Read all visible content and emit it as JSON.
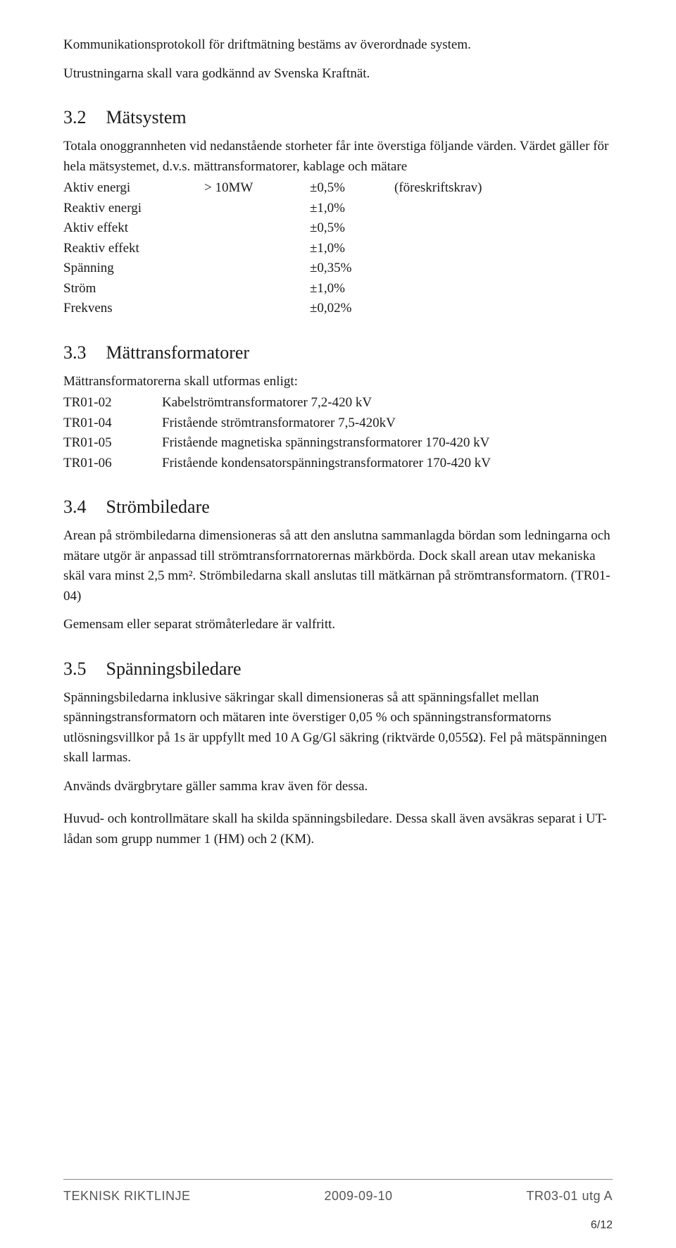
{
  "intro": {
    "p1": "Kommunikationsprotokoll för driftmätning bestäms av överordnade system.",
    "p2": "Utrustningarna skall vara godkännd av Svenska Kraftnät."
  },
  "s32": {
    "num": "3.2",
    "title": "Mätsystem",
    "lead": "Totala onoggrannheten vid nedanstående storheter får inte överstiga följande värden. Värdet gäller för hela mätsystemet, d.v.s. mättransformatorer, kablage och mätare",
    "rows": [
      {
        "label": "Aktiv energi",
        "cond": "> 10MW",
        "val": "±0,5%",
        "note": "(föreskriftskrav)"
      },
      {
        "label": "Reaktiv energi",
        "cond": "",
        "val": "±1,0%",
        "note": ""
      },
      {
        "label": "Aktiv effekt",
        "cond": "",
        "val": "±0,5%",
        "note": ""
      },
      {
        "label": "Reaktiv effekt",
        "cond": "",
        "val": "±1,0%",
        "note": ""
      },
      {
        "label": "Spänning",
        "cond": "",
        "val": "±0,35%",
        "note": ""
      },
      {
        "label": "Ström",
        "cond": "",
        "val": "±1,0%",
        "note": ""
      },
      {
        "label": "Frekvens",
        "cond": "",
        "val": "±0,02%",
        "note": ""
      }
    ]
  },
  "s33": {
    "num": "3.3",
    "title": "Mättransformatorer",
    "lead": "Mättransformatorerna skall utformas enligt:",
    "rows": [
      {
        "ref": "TR01-02",
        "desc": "Kabelströmtransformatorer 7,2-420 kV"
      },
      {
        "ref": "TR01-04",
        "desc": "Fristående strömtransformatorer 7,5-420kV"
      },
      {
        "ref": "TR01-05",
        "desc": "Fristående magnetiska spänningstransformatorer 170-420 kV"
      },
      {
        "ref": "TR01-06",
        "desc": "Fristående kondensatorspänningstransformatorer 170-420 kV"
      }
    ]
  },
  "s34": {
    "num": "3.4",
    "title": "Strömbiledare",
    "p1": "Arean på strömbiledarna dimensioneras så att den anslutna sammanlagda bördan som ledningarna och mätare utgör är anpassad till strömtransforrnatorernas märkbörda. Dock skall arean utav mekaniska skäl vara minst 2,5 mm². Strömbiledarna skall anslutas till mätkärnan på strömtransformatorn. (TR01-04)",
    "p2": "Gemensam eller separat strömåterledare är valfritt."
  },
  "s35": {
    "num": "3.5",
    "title": "Spänningsbiledare",
    "p1": "Spänningsbiledarna inklusive säkringar skall dimensioneras så att spänningsfallet mellan spänningstransformatorn och mätaren inte överstiger 0,05 % och spänningstransformatorns utlösningsvillkor på 1s är uppfyllt med 10 A Gg/Gl säkring (riktvärde 0,055Ω). Fel på mätspänningen skall larmas.",
    "p2": "Används dvärgbrytare gäller samma krav även för dessa.",
    "p3": "Huvud- och kontrollmätare skall ha skilda spänningsbiledare. Dessa skall även avsäkras separat i UT-lådan som grupp nummer 1 (HM) och 2 (KM)."
  },
  "footer": {
    "left": "TEKNISK RIKTLINJE",
    "center": "2009-09-10",
    "right": "TR03-01 utg A",
    "page": "6/12"
  }
}
